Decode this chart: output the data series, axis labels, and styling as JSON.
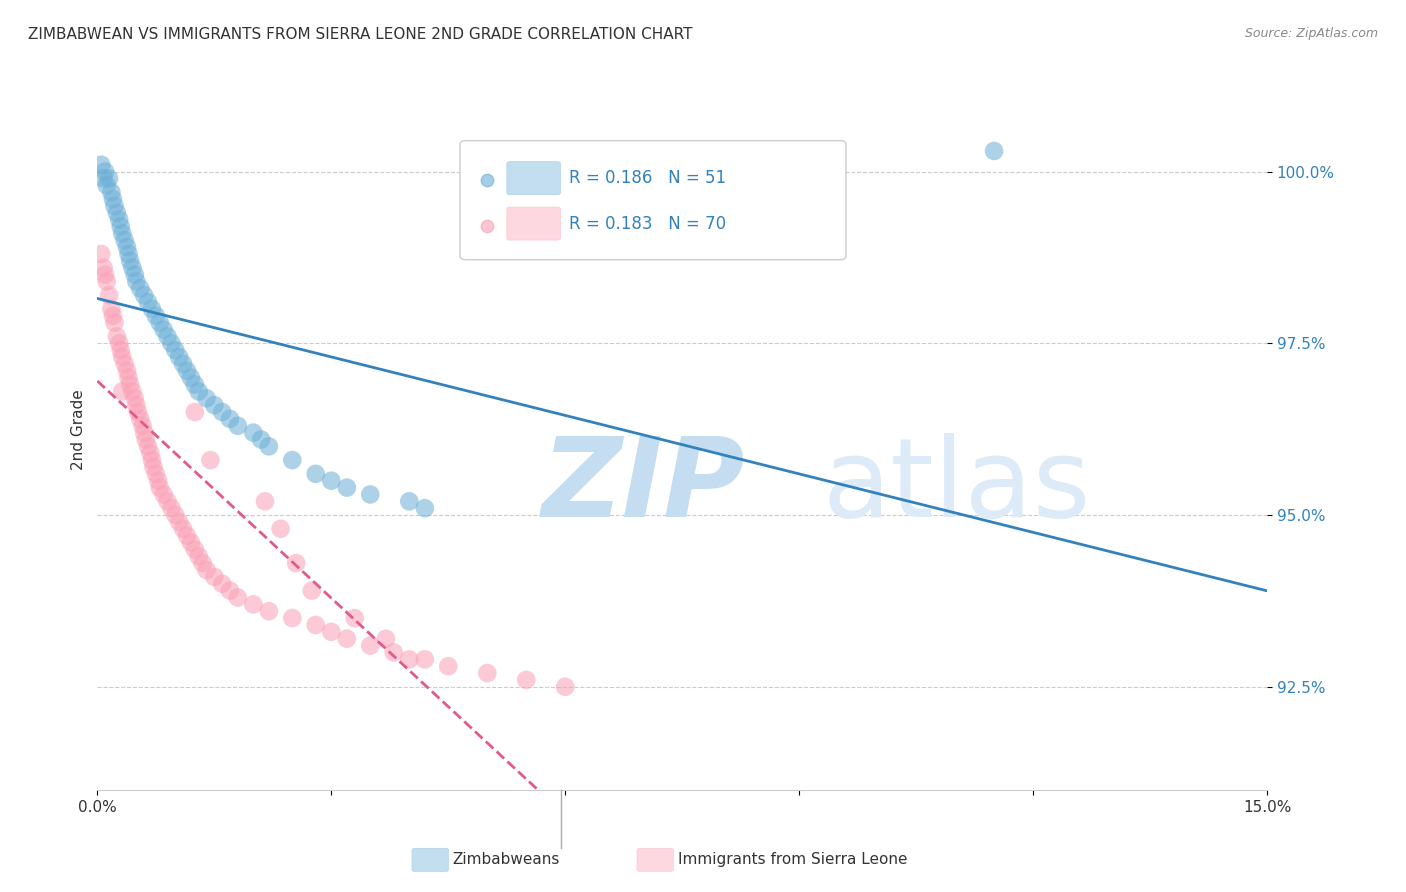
{
  "title": "ZIMBABWEAN VS IMMIGRANTS FROM SIERRA LEONE 2ND GRADE CORRELATION CHART",
  "source": "Source: ZipAtlas.com",
  "ylabel": "2nd Grade",
  "y_ticks": [
    92.5,
    95.0,
    97.5,
    100.0
  ],
  "y_tick_labels": [
    "92.5%",
    "95.0%",
    "97.5%",
    "100.0%"
  ],
  "x_range": [
    0.0,
    15.0
  ],
  "y_range": [
    91.0,
    101.5
  ],
  "legend_R1": "R = 0.186",
  "legend_N1": "N = 51",
  "legend_R2": "R = 0.183",
  "legend_N2": "N = 70",
  "legend_label1": "Zimbabweans",
  "legend_label2": "Immigrants from Sierra Leone",
  "color_blue": "#6baed6",
  "color_pink": "#fa9fb5",
  "color_blue_line": "#3182bd",
  "color_pink_line": "#e05a8a",
  "color_legend_text": "#3182bd",
  "watermark_zip": "ZIP",
  "watermark_atlas": "atlas",
  "watermark_color_zip": "#c8dff0",
  "watermark_color_atlas": "#d8e8f5",
  "zimbabweans_x": [
    0.05,
    0.08,
    0.1,
    0.12,
    0.15,
    0.18,
    0.2,
    0.22,
    0.25,
    0.28,
    0.3,
    0.32,
    0.35,
    0.38,
    0.4,
    0.42,
    0.45,
    0.48,
    0.5,
    0.55,
    0.6,
    0.65,
    0.7,
    0.75,
    0.8,
    0.85,
    0.9,
    0.95,
    1.0,
    1.05,
    1.1,
    1.15,
    1.2,
    1.25,
    1.3,
    1.4,
    1.5,
    1.6,
    1.7,
    1.8,
    2.0,
    2.1,
    2.2,
    2.5,
    2.8,
    3.0,
    3.2,
    3.5,
    4.0,
    4.2,
    11.5
  ],
  "zimbabweans_y": [
    100.1,
    99.9,
    100.0,
    99.8,
    99.9,
    99.7,
    99.6,
    99.5,
    99.4,
    99.3,
    99.2,
    99.1,
    99.0,
    98.9,
    98.8,
    98.7,
    98.6,
    98.5,
    98.4,
    98.3,
    98.2,
    98.1,
    98.0,
    97.9,
    97.8,
    97.7,
    97.6,
    97.5,
    97.4,
    97.3,
    97.2,
    97.1,
    97.0,
    96.9,
    96.8,
    96.7,
    96.6,
    96.5,
    96.4,
    96.3,
    96.2,
    96.1,
    96.0,
    95.8,
    95.6,
    95.5,
    95.4,
    95.3,
    95.2,
    95.1,
    100.3
  ],
  "sierra_leone_x": [
    0.05,
    0.08,
    0.1,
    0.12,
    0.15,
    0.18,
    0.2,
    0.22,
    0.25,
    0.28,
    0.3,
    0.32,
    0.35,
    0.38,
    0.4,
    0.42,
    0.45,
    0.48,
    0.5,
    0.52,
    0.55,
    0.58,
    0.6,
    0.62,
    0.65,
    0.68,
    0.7,
    0.72,
    0.75,
    0.78,
    0.8,
    0.85,
    0.9,
    0.95,
    1.0,
    1.05,
    1.1,
    1.15,
    1.2,
    1.25,
    1.3,
    1.35,
    1.4,
    1.5,
    1.6,
    1.7,
    1.8,
    2.0,
    2.2,
    2.5,
    2.8,
    3.0,
    3.2,
    3.5,
    3.8,
    4.0,
    4.5,
    1.25,
    1.45,
    2.15,
    2.35,
    2.55,
    2.75,
    3.3,
    3.7,
    4.2,
    5.0,
    5.5,
    6.0,
    0.32
  ],
  "sierra_leone_y": [
    98.8,
    98.6,
    98.5,
    98.4,
    98.2,
    98.0,
    97.9,
    97.8,
    97.6,
    97.5,
    97.4,
    97.3,
    97.2,
    97.1,
    97.0,
    96.9,
    96.8,
    96.7,
    96.6,
    96.5,
    96.4,
    96.3,
    96.2,
    96.1,
    96.0,
    95.9,
    95.8,
    95.7,
    95.6,
    95.5,
    95.4,
    95.3,
    95.2,
    95.1,
    95.0,
    94.9,
    94.8,
    94.7,
    94.6,
    94.5,
    94.4,
    94.3,
    94.2,
    94.1,
    94.0,
    93.9,
    93.8,
    93.7,
    93.6,
    93.5,
    93.4,
    93.3,
    93.2,
    93.1,
    93.0,
    92.9,
    92.8,
    96.5,
    95.8,
    95.2,
    94.8,
    94.3,
    93.9,
    93.5,
    93.2,
    92.9,
    92.7,
    92.6,
    92.5,
    96.8
  ]
}
